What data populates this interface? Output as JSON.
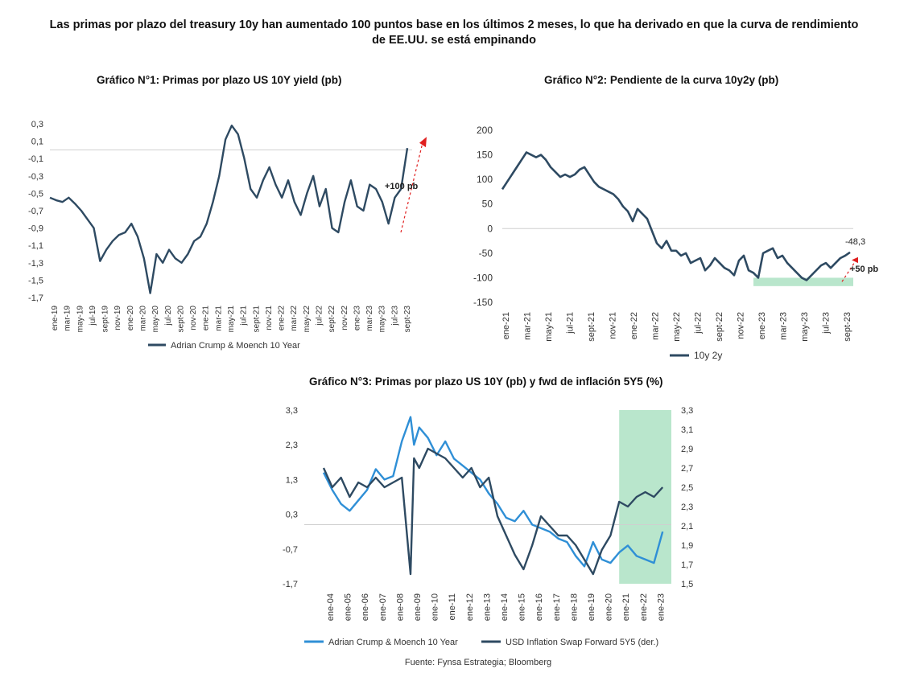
{
  "headline": "Las primas por plazo del treasury 10y han aumentado 100 puntos base en los últimos 2 meses, lo que ha derivado en que la curva de rendimiento de EE.UU. se está empinando",
  "source": "Fuente: Fynsa Estrategia; Bloomberg",
  "colors": {
    "dark": "#2e4a62",
    "light": "#2f8fd6",
    "highlight": "#b9e6cc",
    "arrow": "#e02020"
  },
  "chart_data": [
    {
      "type": "line",
      "title": "Gráfico N°1: Primas por plazo US 10Y yield (pb)",
      "y_ticks": [
        "0,3",
        "0,1",
        "-0,1",
        "-0,3",
        "-0,5",
        "-0,7",
        "-0,9",
        "-1,1",
        "-1,3",
        "-1,5",
        "-1,7"
      ],
      "ylim": [
        -1.7,
        0.3
      ],
      "x_ticks": [
        "ene-19",
        "mar-19",
        "may-19",
        "jul-19",
        "sept-19",
        "nov-19",
        "ene-20",
        "mar-20",
        "may-20",
        "jul-20",
        "sept-20",
        "nov-20",
        "ene-21",
        "mar-21",
        "may-21",
        "jul-21",
        "sept-21",
        "nov-21",
        "ene-22",
        "mar-22",
        "may-22",
        "jul-22",
        "sept-22",
        "nov-22",
        "ene-23",
        "mar-23",
        "may-23",
        "jul-23",
        "sept-23"
      ],
      "annotation": "+100 pb",
      "series": [
        {
          "name": "Adrian Crump & Moench 10 Year",
          "x": [
            0,
            1,
            2,
            3,
            4,
            5,
            6,
            7,
            8,
            9,
            10,
            11,
            12,
            13,
            14,
            15,
            16,
            17,
            18,
            19,
            20,
            21,
            22,
            23,
            24,
            25,
            26,
            27,
            28,
            29,
            30,
            31,
            32,
            33,
            34,
            35,
            36,
            37,
            38,
            39,
            40,
            41,
            42,
            43,
            44,
            45,
            46,
            47,
            48,
            49,
            50,
            51,
            52,
            53,
            54,
            55,
            56,
            57
          ],
          "values": [
            -0.55,
            -0.58,
            -0.6,
            -0.55,
            -0.62,
            -0.7,
            -0.8,
            -0.9,
            -1.28,
            -1.15,
            -1.05,
            -0.98,
            -0.95,
            -0.85,
            -1.0,
            -1.25,
            -1.65,
            -1.2,
            -1.3,
            -1.15,
            -1.25,
            -1.3,
            -1.2,
            -1.05,
            -1.0,
            -0.85,
            -0.6,
            -0.3,
            0.12,
            0.28,
            0.18,
            -0.1,
            -0.45,
            -0.55,
            -0.35,
            -0.2,
            -0.4,
            -0.55,
            -0.35,
            -0.6,
            -0.75,
            -0.5,
            -0.3,
            -0.65,
            -0.45,
            -0.9,
            -0.95,
            -0.6,
            -0.35,
            -0.65,
            -0.7,
            -0.4,
            -0.45,
            -0.6,
            -0.85,
            -0.55,
            -0.45,
            0.02
          ]
        }
      ]
    },
    {
      "type": "line",
      "title": "Gráfico N°2: Pendiente de la curva 10y2y (pb)",
      "y_ticks": [
        "200",
        "150",
        "100",
        "50",
        "0",
        "-50",
        "-100",
        "-150"
      ],
      "ylim": [
        -150,
        200
      ],
      "x_ticks": [
        "ene-21",
        "mar-21",
        "may-21",
        "jul-21",
        "sept-21",
        "nov-21",
        "ene-22",
        "mar-22",
        "may-22",
        "jul-22",
        "sept-22",
        "nov-22",
        "ene-23",
        "mar-23",
        "may-23",
        "jul-23",
        "sept-23"
      ],
      "annotations": [
        "-48,3",
        "+50 pb"
      ],
      "series": [
        {
          "name": "10y 2y",
          "x": [
            0,
            1,
            2,
            3,
            4,
            5,
            6,
            7,
            8,
            9,
            10,
            11,
            12,
            13,
            14,
            15,
            16,
            17,
            18,
            19,
            20,
            21,
            22,
            23,
            24,
            25,
            26,
            27,
            28,
            29,
            30,
            31,
            32,
            33,
            34,
            35,
            36,
            37,
            38,
            39,
            40,
            41,
            42,
            43,
            44,
            45,
            46,
            47,
            48,
            49,
            50,
            51,
            52,
            53,
            54,
            55,
            56,
            57,
            58,
            59,
            60,
            61,
            62,
            63,
            64,
            65,
            66,
            67,
            68,
            69,
            70,
            71,
            72
          ],
          "values": [
            80,
            95,
            110,
            125,
            140,
            155,
            150,
            145,
            150,
            140,
            125,
            115,
            105,
            110,
            105,
            110,
            120,
            125,
            110,
            95,
            85,
            80,
            75,
            70,
            60,
            45,
            35,
            15,
            40,
            30,
            20,
            -5,
            -30,
            -40,
            -25,
            -45,
            -45,
            -55,
            -50,
            -70,
            -65,
            -60,
            -85,
            -75,
            -60,
            -70,
            -80,
            -85,
            -95,
            -65,
            -55,
            -85,
            -90,
            -100,
            -50,
            -45,
            -40,
            -60,
            -55,
            -70,
            -80,
            -90,
            -100,
            -105,
            -95,
            -85,
            -75,
            -70,
            -80,
            -70,
            -60,
            -55,
            -48.3
          ]
        }
      ]
    },
    {
      "type": "line",
      "title": "Gráfico N°3: Primas por plazo US 10Y (pb) y fwd de inflación 5Y5 (%)",
      "y_ticks_left": [
        "3,3",
        "2,3",
        "1,3",
        "0,3",
        "-0,7",
        "-1,7"
      ],
      "ylim_left": [
        -1.7,
        3.3
      ],
      "y_ticks_right": [
        "3,3",
        "3,1",
        "2,9",
        "2,7",
        "2,5",
        "2,3",
        "2,1",
        "1,9",
        "1,7",
        "1,5"
      ],
      "ylim_right": [
        1.5,
        3.3
      ],
      "x_ticks": [
        "ene-04",
        "ene-05",
        "ene-06",
        "ene-07",
        "ene-08",
        "ene-09",
        "ene-10",
        "ene-11",
        "ene-12",
        "ene-13",
        "ene-14",
        "ene-15",
        "ene-16",
        "ene-17",
        "ene-18",
        "ene-19",
        "ene-20",
        "ene-21",
        "ene-22",
        "ene-23"
      ],
      "series": [
        {
          "name": "Adrian Crump & Moench 10 Year",
          "axis": "left",
          "x": [
            0,
            0.5,
            1,
            1.5,
            2,
            2.5,
            3,
            3.5,
            4,
            4.5,
            5,
            5.2,
            5.5,
            6,
            6.5,
            7,
            7.5,
            8,
            8.5,
            9,
            9.5,
            10,
            10.5,
            11,
            11.5,
            12,
            12.5,
            13,
            13.5,
            14,
            14.5,
            15,
            15.5,
            16,
            16.5,
            17,
            17.5,
            18,
            18.5,
            19,
            19.5
          ],
          "values": [
            1.5,
            1.0,
            0.6,
            0.4,
            0.7,
            1.0,
            1.6,
            1.3,
            1.4,
            2.4,
            3.1,
            2.3,
            2.8,
            2.5,
            2.0,
            2.4,
            1.9,
            1.7,
            1.5,
            1.3,
            0.9,
            0.6,
            0.2,
            0.1,
            0.4,
            0.0,
            -0.1,
            -0.2,
            -0.4,
            -0.5,
            -0.9,
            -1.2,
            -0.5,
            -1.0,
            -1.1,
            -0.8,
            -0.6,
            -0.9,
            -1.0,
            -1.1,
            -0.2
          ]
        },
        {
          "name": "USD Inflation Swap Forward 5Y5 (der.)",
          "axis": "right",
          "x": [
            0,
            0.5,
            1,
            1.5,
            2,
            2.5,
            3,
            3.5,
            4,
            4.5,
            5,
            5.2,
            5.5,
            6,
            6.5,
            7,
            7.5,
            8,
            8.5,
            9,
            9.5,
            10,
            10.5,
            11,
            11.5,
            12,
            12.5,
            13,
            13.5,
            14,
            14.5,
            15,
            15.5,
            16,
            16.5,
            17,
            17.5,
            18,
            18.5,
            19,
            19.5
          ],
          "values": [
            2.7,
            2.5,
            2.6,
            2.4,
            2.55,
            2.5,
            2.6,
            2.5,
            2.55,
            2.6,
            1.6,
            2.8,
            2.7,
            2.9,
            2.85,
            2.8,
            2.7,
            2.6,
            2.7,
            2.5,
            2.6,
            2.2,
            2.0,
            1.8,
            1.65,
            1.9,
            2.2,
            2.1,
            2.0,
            2.0,
            1.9,
            1.75,
            1.6,
            1.85,
            2.0,
            2.35,
            2.3,
            2.4,
            2.45,
            2.4,
            2.5
          ]
        }
      ]
    }
  ]
}
